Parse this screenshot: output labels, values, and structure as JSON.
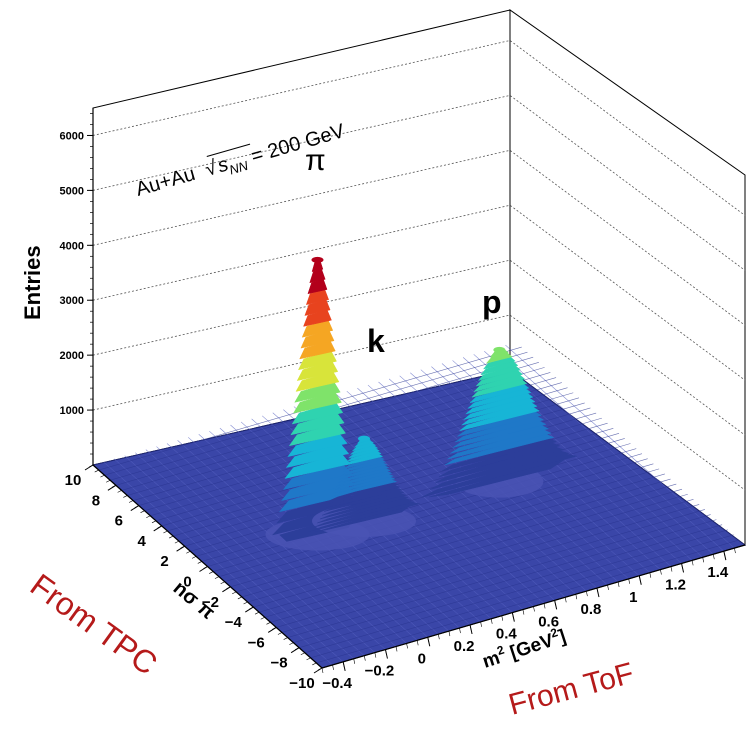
{
  "chart_data": {
    "type": "surface",
    "title": "Au+Au √s_NN = 200 GeV",
    "title_parts": {
      "prefix": "Au+Au",
      "radicand": "s",
      "subscript": "NN",
      "suffix": "= 200 GeV"
    },
    "zlabel": "Entries",
    "xlabel_prefix": "m",
    "xlabel_sup": "2",
    "xlabel_mid": " [GeV",
    "xlabel_end": "]",
    "ylabel": "nσ π",
    "zlim": [
      0,
      6500
    ],
    "z_ticks": [
      "1000",
      "2000",
      "3000",
      "4000",
      "5000",
      "6000"
    ],
    "z_tick_values": [
      1000,
      2000,
      3000,
      4000,
      5000,
      6000
    ],
    "x_ticks": [
      "−0.4",
      "−0.2",
      "0",
      "0.2",
      "0.4",
      "0.6",
      "0.8",
      "1",
      "1.2",
      "1.4"
    ],
    "y_ticks": [
      "10",
      "8",
      "6",
      "4",
      "2",
      "0",
      "−2",
      "−4",
      "−6",
      "−8",
      "−10"
    ],
    "peaks": [
      {
        "label": "π",
        "m2": 0.02,
        "nsigma": 0,
        "height": 5000
      },
      {
        "label": "k",
        "m2": 0.24,
        "nsigma": 0,
        "height": 1500
      },
      {
        "label": "p",
        "m2": 0.88,
        "nsigma": 0,
        "height": 2400
      }
    ],
    "annotations": [
      "From TPC",
      "From ToF"
    ],
    "colormap": [
      "#2c3e9a",
      "#1f78c8",
      "#17b5d6",
      "#2fd3b0",
      "#7fe36a",
      "#d8e43a",
      "#f5a623",
      "#e8431e",
      "#b3001b"
    ]
  }
}
